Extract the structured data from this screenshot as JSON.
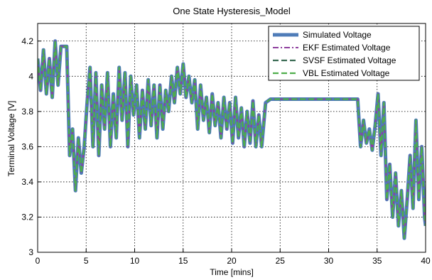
{
  "chart_data": {
    "type": "line",
    "title": "One State Hysteresis_Model",
    "xlabel": "Time [mins]",
    "ylabel": "Terminal Voltage [V]",
    "xlim": [
      0,
      40
    ],
    "ylim": [
      3,
      4.3
    ],
    "xticks": [
      "0",
      "5",
      "10",
      "15",
      "20",
      "25",
      "30",
      "35",
      "40"
    ],
    "yticks": [
      "3",
      "3.2",
      "3.4",
      "3.6",
      "3.8",
      "4",
      "4.2"
    ],
    "grid": true,
    "legend_position": "top-right",
    "series": [
      {
        "name": "Simulated Voltage",
        "color": "#4f7cb8",
        "style": "solid"
      },
      {
        "name": "EKF Estimated Voltage",
        "color": "#8e3e9e",
        "style": "dashdot"
      },
      {
        "name": "SVSF Estimated Voltage",
        "color": "#3a6b54",
        "style": "dashed"
      },
      {
        "name": "VBL Estimated Voltage",
        "color": "#4fae4c",
        "style": "dashed"
      }
    ],
    "x": [
      0,
      0.3,
      0.6,
      0.9,
      1.2,
      1.5,
      1.8,
      2.1,
      2.4,
      2.7,
      3.0,
      3.3,
      3.6,
      3.9,
      4.2,
      4.5,
      4.8,
      5.1,
      5.4,
      5.7,
      6.0,
      6.3,
      6.6,
      6.9,
      7.2,
      7.5,
      7.8,
      8.1,
      8.4,
      8.7,
      9.0,
      9.3,
      9.6,
      9.9,
      10.2,
      10.5,
      10.8,
      11.1,
      11.4,
      11.7,
      12.0,
      12.3,
      12.6,
      12.9,
      13.2,
      13.5,
      13.8,
      14.1,
      14.4,
      14.7,
      15.0,
      15.3,
      15.6,
      15.9,
      16.2,
      16.5,
      16.8,
      17.1,
      17.4,
      17.7,
      18.0,
      18.3,
      18.6,
      18.9,
      19.2,
      19.5,
      19.8,
      20.1,
      20.4,
      20.7,
      21.0,
      21.3,
      21.6,
      21.9,
      22.2,
      22.5,
      22.8,
      23.1,
      23.5,
      24.0,
      25,
      27,
      30,
      32,
      33.0,
      33.3,
      33.6,
      33.9,
      34.2,
      34.5,
      34.8,
      35.1,
      35.4,
      35.7,
      36.0,
      36.3,
      36.6,
      36.9,
      37.2,
      37.5,
      37.8,
      38.1,
      38.4,
      38.7,
      39.0,
      39.3,
      39.6,
      39.9,
      40.0
    ],
    "y": [
      4.1,
      3.92,
      4.15,
      3.9,
      4.1,
      3.88,
      4.2,
      3.95,
      4.17,
      4.17,
      4.17,
      3.55,
      3.7,
      3.35,
      3.65,
      3.45,
      3.6,
      3.85,
      4.05,
      3.6,
      4.02,
      3.55,
      3.95,
      3.7,
      4.02,
      3.6,
      3.9,
      3.65,
      4.05,
      3.75,
      4.02,
      3.6,
      4.0,
      3.78,
      3.95,
      3.65,
      3.92,
      3.7,
      3.98,
      3.72,
      3.95,
      3.65,
      3.95,
      3.7,
      3.92,
      3.8,
      4.0,
      3.85,
      4.05,
      3.9,
      4.07,
      3.88,
      4.0,
      3.85,
      3.98,
      3.7,
      3.95,
      3.75,
      3.88,
      3.68,
      3.9,
      3.72,
      3.85,
      3.65,
      3.88,
      3.7,
      3.85,
      3.62,
      3.88,
      3.65,
      3.82,
      3.6,
      3.8,
      3.62,
      3.86,
      3.6,
      3.78,
      3.6,
      3.85,
      3.87,
      3.87,
      3.87,
      3.87,
      3.87,
      3.87,
      3.6,
      3.75,
      3.62,
      3.7,
      3.58,
      3.72,
      3.9,
      3.55,
      3.85,
      3.3,
      3.5,
      3.2,
      3.45,
      3.15,
      3.35,
      3.08,
      3.3,
      3.55,
      3.25,
      3.75,
      3.3,
      3.6,
      3.2,
      3.15
    ]
  }
}
